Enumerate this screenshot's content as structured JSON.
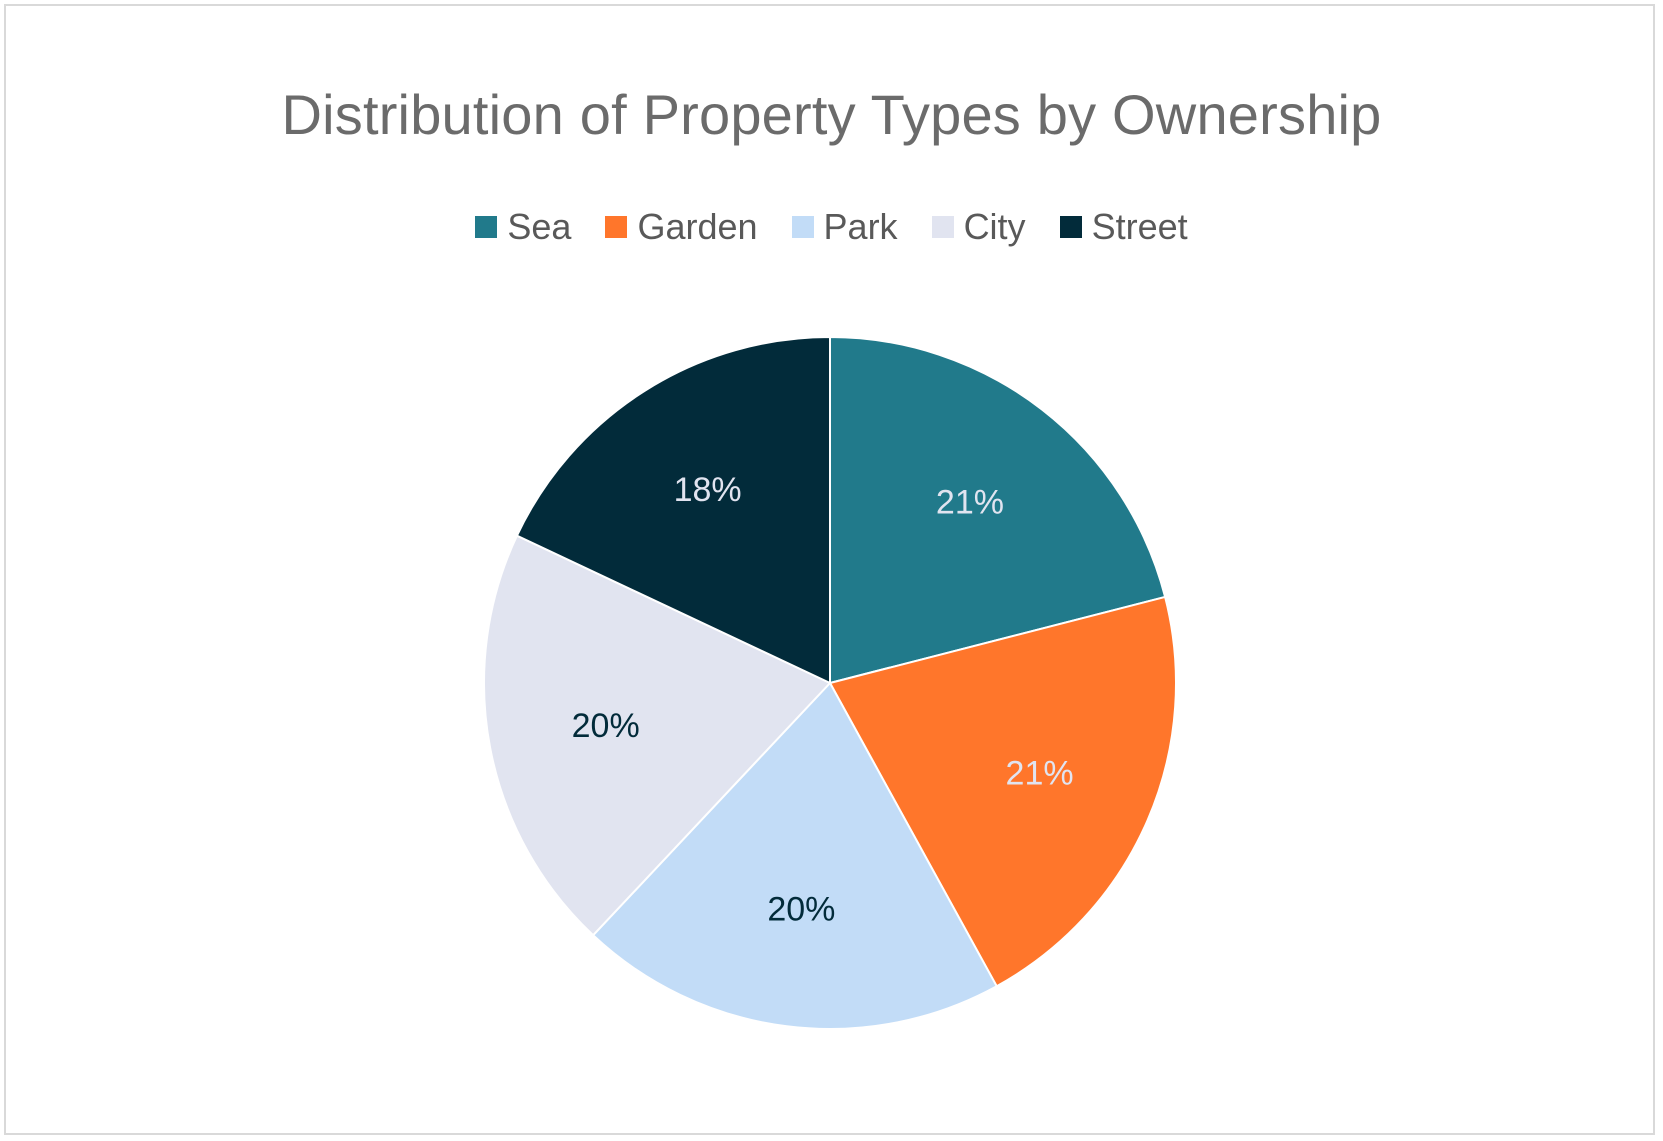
{
  "chart_data": {
    "type": "pie",
    "title": "Distribution of Property Types by Ownership",
    "categories": [
      "Sea",
      "Garden",
      "Park",
      "City",
      "Street"
    ],
    "values": [
      21,
      21,
      20,
      20,
      18
    ],
    "data_labels": [
      "21%",
      "21%",
      "20%",
      "20%",
      "18%"
    ],
    "colors": [
      "#217a8b",
      "#ff762b",
      "#c2dcf7",
      "#e1e4f0",
      "#022b3a"
    ],
    "label_colors": [
      "#e1e4f0",
      "#e1e4f0",
      "#022b3a",
      "#022b3a",
      "#e1e4f0"
    ],
    "legend_position": "top",
    "start_angle": "12 o'clock, clockwise"
  }
}
